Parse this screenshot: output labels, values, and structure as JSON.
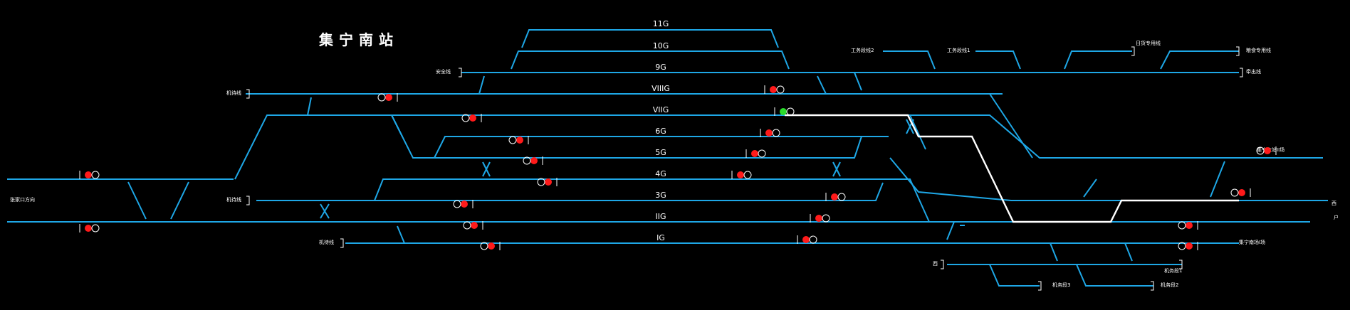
{
  "station_name": "集宁南站",
  "colors": {
    "background": "#000000",
    "track": "#1ea7e6",
    "route_locked": "#ffffff",
    "signal_red": "#ff1a1a",
    "signal_green": "#2bdc2b",
    "signal_off_outline": "#ffffff",
    "text": "#ffffff"
  },
  "tracks": [
    {
      "id": "11G",
      "label": "11G"
    },
    {
      "id": "10G",
      "label": "10G"
    },
    {
      "id": "9G",
      "label": "9G"
    },
    {
      "id": "VIIIG",
      "label": "VIIIG"
    },
    {
      "id": "VIIG",
      "label": "VIIG"
    },
    {
      "id": "6G",
      "label": "6G"
    },
    {
      "id": "5G",
      "label": "5G"
    },
    {
      "id": "4G",
      "label": "4G"
    },
    {
      "id": "3G",
      "label": "3G"
    },
    {
      "id": "IIG",
      "label": "IIG"
    },
    {
      "id": "IG",
      "label": "IG"
    }
  ],
  "place_labels": [
    {
      "id": "anquanxian",
      "text": "安全线"
    },
    {
      "id": "qiandaoxian-upper",
      "text": "机待线"
    },
    {
      "id": "zhangjiakou-direction",
      "text": "张家口方向"
    },
    {
      "id": "qiandaoxian-mid",
      "text": "机待线"
    },
    {
      "id": "qiandaoxian-low",
      "text": "机待线"
    },
    {
      "id": "gongwuduan2",
      "text": "工务段线2"
    },
    {
      "id": "gongwuduan1",
      "text": "工务段线1"
    },
    {
      "id": "rizhuan",
      "text": "日货专用线"
    },
    {
      "id": "yaodian",
      "text": "粮食专用线"
    },
    {
      "id": "xiangongxian",
      "text": "牵出线"
    },
    {
      "id": "jining-east",
      "text": "集宁东站II场"
    },
    {
      "id": "jining-right-a",
      "text": "西"
    },
    {
      "id": "jining-right-b",
      "text": "户"
    },
    {
      "id": "jining-south",
      "text": "集宁南场I场"
    },
    {
      "id": "west",
      "text": "西"
    },
    {
      "id": "jiwuduan1",
      "text": "机务段1"
    },
    {
      "id": "jiwuduan3",
      "text": "机务段3"
    },
    {
      "id": "jiwuduan2",
      "text": "机务段2"
    }
  ],
  "signals": [
    {
      "id": "sig-left-upper",
      "aspect": "red"
    },
    {
      "id": "sig-left-lower",
      "aspect": "red"
    },
    {
      "id": "sig-viiig-w",
      "aspect": "red"
    },
    {
      "id": "sig-viig-w",
      "aspect": "red"
    },
    {
      "id": "sig-6g-w",
      "aspect": "red"
    },
    {
      "id": "sig-5g-w",
      "aspect": "red"
    },
    {
      "id": "sig-4g-w",
      "aspect": "red"
    },
    {
      "id": "sig-3g-w",
      "aspect": "red"
    },
    {
      "id": "sig-iig-w",
      "aspect": "red"
    },
    {
      "id": "sig-ig-w",
      "aspect": "red"
    },
    {
      "id": "sig-viiig-e",
      "aspect": "red"
    },
    {
      "id": "sig-viig-e",
      "aspect": "green"
    },
    {
      "id": "sig-6g-e",
      "aspect": "red"
    },
    {
      "id": "sig-5g-e",
      "aspect": "red"
    },
    {
      "id": "sig-4g-e",
      "aspect": "red"
    },
    {
      "id": "sig-3g-e",
      "aspect": "red"
    },
    {
      "id": "sig-iig-e",
      "aspect": "red"
    },
    {
      "id": "sig-ig-e",
      "aspect": "red"
    },
    {
      "id": "sig-right-1",
      "aspect": "red"
    },
    {
      "id": "sig-right-2",
      "aspect": "red"
    },
    {
      "id": "sig-right-3",
      "aspect": "red"
    },
    {
      "id": "sig-right-4",
      "aspect": "red"
    }
  ]
}
